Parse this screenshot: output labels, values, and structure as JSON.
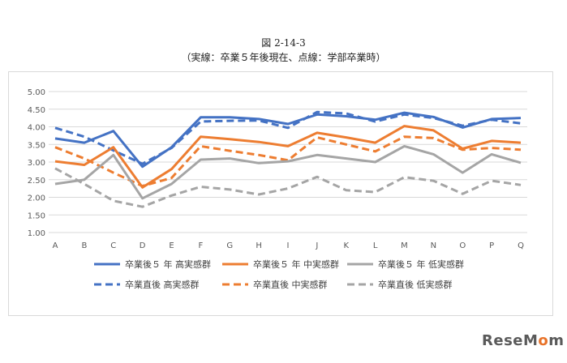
{
  "figure": {
    "title": "図 2-14-3",
    "subtitle": "（実線：卒業５年後現在、点線：学部卒業時）"
  },
  "watermark": {
    "text_a": "ReseM",
    "text_b": "o",
    "text_c": "m"
  },
  "chart_data": {
    "type": "line",
    "categories": [
      "A",
      "B",
      "C",
      "D",
      "E",
      "F",
      "G",
      "H",
      "I",
      "J",
      "K",
      "L",
      "M",
      "N",
      "O",
      "P",
      "Q"
    ],
    "ylim": [
      1.0,
      5.0
    ],
    "yticks": [
      "1.00",
      "1.50",
      "2.00",
      "2.50",
      "3.00",
      "3.50",
      "4.00",
      "4.50",
      "5.00"
    ],
    "grid": true,
    "legend_position": "bottom",
    "series": [
      {
        "name": "卒業後５ 年 高実感群",
        "color": "#4472c4",
        "style": "solid",
        "values": [
          3.67,
          3.55,
          3.88,
          2.87,
          3.42,
          4.27,
          4.27,
          4.22,
          4.08,
          4.35,
          4.3,
          4.2,
          4.4,
          4.28,
          3.98,
          4.22,
          4.25
        ]
      },
      {
        "name": "卒業後５ 年 中実感群",
        "color": "#ed7d31",
        "style": "solid",
        "values": [
          3.02,
          2.92,
          3.42,
          2.28,
          2.8,
          3.72,
          3.65,
          3.57,
          3.45,
          3.83,
          3.7,
          3.55,
          4.02,
          3.9,
          3.38,
          3.6,
          3.55
        ]
      },
      {
        "name": "卒業後５ 年 低実感群",
        "color": "#a5a5a5",
        "style": "solid",
        "values": [
          2.38,
          2.5,
          3.2,
          1.97,
          2.38,
          3.07,
          3.1,
          2.97,
          3.02,
          3.2,
          3.1,
          3.0,
          3.45,
          3.22,
          2.7,
          3.22,
          2.98
        ]
      },
      {
        "name": "卒業直後 高実感群",
        "color": "#4472c4",
        "style": "dashed",
        "values": [
          3.97,
          3.72,
          3.33,
          2.95,
          3.4,
          4.15,
          4.17,
          4.18,
          3.97,
          4.42,
          4.38,
          4.15,
          4.35,
          4.25,
          4.03,
          4.2,
          4.1
        ]
      },
      {
        "name": "卒業直後 中実感群",
        "color": "#ed7d31",
        "style": "dashed",
        "values": [
          3.42,
          3.1,
          2.7,
          2.32,
          2.55,
          3.45,
          3.32,
          3.2,
          3.05,
          3.7,
          3.5,
          3.3,
          3.72,
          3.68,
          3.35,
          3.4,
          3.35
        ]
      },
      {
        "name": "卒業直後 低実感群",
        "color": "#a5a5a5",
        "style": "dashed",
        "values": [
          2.82,
          2.38,
          1.9,
          1.73,
          2.05,
          2.3,
          2.22,
          2.08,
          2.25,
          2.58,
          2.2,
          2.15,
          2.57,
          2.47,
          2.1,
          2.47,
          2.35
        ]
      }
    ]
  }
}
